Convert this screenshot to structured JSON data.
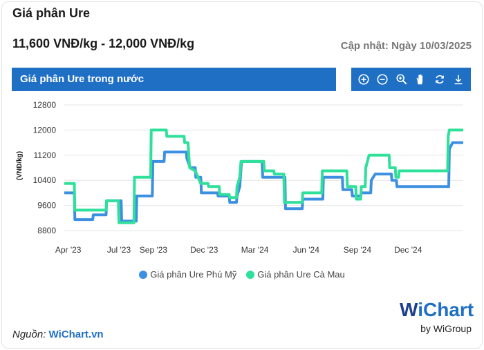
{
  "header": {
    "title": "Giá phân Ure",
    "price_range": "11,600 VNĐ/kg - 12,000 VNĐ/kg",
    "updated": "Cập nhật: Ngày 10/03/2025"
  },
  "chart_panel": {
    "title": "Giá phân Ure trong nước",
    "tools": [
      "zoom-in-icon",
      "zoom-out-icon",
      "magnify-icon",
      "pan-hand-icon",
      "reset-icon",
      "download-icon"
    ]
  },
  "colors": {
    "accent": "#1f6fc4",
    "phu_my": "#3d8fe0",
    "ca_mau": "#2fe09b"
  },
  "chart_data": {
    "type": "line",
    "title": "",
    "ylabel": "(VNĐ/kg)",
    "xlabel": "",
    "ylim": [
      8800,
      12800
    ],
    "yticks": [
      8800,
      9600,
      10400,
      11200,
      12000,
      12800
    ],
    "x_range": [
      "2023-03-25",
      "2025-03-10"
    ],
    "xticks": [
      {
        "date": "2023-04-01",
        "label": "Apr '23"
      },
      {
        "date": "2023-07-01",
        "label": "Jul '23"
      },
      {
        "date": "2023-09-01",
        "label": "Sep '23"
      },
      {
        "date": "2023-12-01",
        "label": "Dec '23"
      },
      {
        "date": "2024-03-01",
        "label": "Mar '24"
      },
      {
        "date": "2024-06-01",
        "label": "Jun '24"
      },
      {
        "date": "2024-09-01",
        "label": "Sep '24"
      },
      {
        "date": "2024-12-01",
        "label": "Dec '24"
      }
    ],
    "grid": true,
    "legend_position": "bottom",
    "series": [
      {
        "name": "Giá phân Ure Phú Mỹ",
        "points": [
          [
            "2023-03-25",
            10000
          ],
          [
            "2023-04-12",
            10000
          ],
          [
            "2023-04-13",
            9150
          ],
          [
            "2023-05-15",
            9150
          ],
          [
            "2023-05-16",
            9300
          ],
          [
            "2023-06-08",
            9300
          ],
          [
            "2023-06-09",
            9750
          ],
          [
            "2023-07-05",
            9750
          ],
          [
            "2023-07-06",
            9100
          ],
          [
            "2023-08-01",
            9100
          ],
          [
            "2023-08-02",
            9900
          ],
          [
            "2023-08-30",
            9900
          ],
          [
            "2023-08-31",
            11000
          ],
          [
            "2023-09-20",
            11000
          ],
          [
            "2023-09-21",
            11300
          ],
          [
            "2023-10-30",
            11300
          ],
          [
            "2023-10-31",
            11100
          ],
          [
            "2023-11-06",
            10800
          ],
          [
            "2023-11-15",
            10800
          ],
          [
            "2023-11-16",
            10500
          ],
          [
            "2023-11-25",
            10500
          ],
          [
            "2023-11-26",
            10000
          ],
          [
            "2023-12-25",
            10000
          ],
          [
            "2023-12-26",
            9900
          ],
          [
            "2024-01-15",
            9900
          ],
          [
            "2024-01-16",
            9700
          ],
          [
            "2024-01-28",
            9700
          ],
          [
            "2024-01-29",
            9900
          ],
          [
            "2024-02-03",
            10200
          ],
          [
            "2024-02-06",
            11000
          ],
          [
            "2024-03-14",
            11000
          ],
          [
            "2024-03-15",
            10500
          ],
          [
            "2024-04-24",
            10500
          ],
          [
            "2024-04-25",
            9500
          ],
          [
            "2024-05-25",
            9500
          ],
          [
            "2024-05-26",
            9800
          ],
          [
            "2024-07-01",
            9800
          ],
          [
            "2024-07-02",
            10500
          ],
          [
            "2024-08-05",
            10500
          ],
          [
            "2024-08-06",
            10100
          ],
          [
            "2024-08-22",
            10100
          ],
          [
            "2024-08-23",
            9900
          ],
          [
            "2024-09-07",
            9900
          ],
          [
            "2024-09-08",
            10000
          ],
          [
            "2024-09-25",
            10000
          ],
          [
            "2024-09-26",
            10400
          ],
          [
            "2024-10-03",
            10600
          ],
          [
            "2024-11-01",
            10600
          ],
          [
            "2024-11-02",
            10400
          ],
          [
            "2024-11-10",
            10400
          ],
          [
            "2024-11-11",
            10200
          ],
          [
            "2025-02-12",
            10200
          ],
          [
            "2025-02-13",
            11400
          ],
          [
            "2025-02-19",
            11600
          ],
          [
            "2025-03-10",
            11600
          ]
        ]
      },
      {
        "name": "Giá phân Ure Cà Mau",
        "points": [
          [
            "2023-03-25",
            10300
          ],
          [
            "2023-04-12",
            10300
          ],
          [
            "2023-04-13",
            9450
          ],
          [
            "2023-06-08",
            9450
          ],
          [
            "2023-06-09",
            9750
          ],
          [
            "2023-06-30",
            9750
          ],
          [
            "2023-07-01",
            9050
          ],
          [
            "2023-07-28",
            9050
          ],
          [
            "2023-07-29",
            10500
          ],
          [
            "2023-08-27",
            10500
          ],
          [
            "2023-08-28",
            12000
          ],
          [
            "2023-09-24",
            12000
          ],
          [
            "2023-09-25",
            11800
          ],
          [
            "2023-10-26",
            11800
          ],
          [
            "2023-10-27",
            11600
          ],
          [
            "2023-11-02",
            11600
          ],
          [
            "2023-11-05",
            10800
          ],
          [
            "2023-11-15",
            10700
          ],
          [
            "2023-11-25",
            10300
          ],
          [
            "2023-12-08",
            10300
          ],
          [
            "2023-12-09",
            10200
          ],
          [
            "2023-12-28",
            10200
          ],
          [
            "2023-12-29",
            9950
          ],
          [
            "2024-01-15",
            9950
          ],
          [
            "2024-01-16",
            9850
          ],
          [
            "2024-01-28",
            9850
          ],
          [
            "2024-01-29",
            10200
          ],
          [
            "2024-02-03",
            10500
          ],
          [
            "2024-02-05",
            11000
          ],
          [
            "2024-03-17",
            11000
          ],
          [
            "2024-03-18",
            10700
          ],
          [
            "2024-04-04",
            10700
          ],
          [
            "2024-04-05",
            10600
          ],
          [
            "2024-04-22",
            10600
          ],
          [
            "2024-04-23",
            9700
          ],
          [
            "2024-05-25",
            9700
          ],
          [
            "2024-05-26",
            10000
          ],
          [
            "2024-06-29",
            10000
          ],
          [
            "2024-06-30",
            10700
          ],
          [
            "2024-08-13",
            10700
          ],
          [
            "2024-08-14",
            10200
          ],
          [
            "2024-08-29",
            10200
          ],
          [
            "2024-08-30",
            9800
          ],
          [
            "2024-09-07",
            9800
          ],
          [
            "2024-09-08",
            10200
          ],
          [
            "2024-09-15",
            10200
          ],
          [
            "2024-09-16",
            10800
          ],
          [
            "2024-09-22",
            11200
          ],
          [
            "2024-10-28",
            11200
          ],
          [
            "2024-10-29",
            10800
          ],
          [
            "2024-11-08",
            10800
          ],
          [
            "2024-11-09",
            10500
          ],
          [
            "2024-11-14",
            10500
          ],
          [
            "2024-11-15",
            10700
          ],
          [
            "2025-02-10",
            10700
          ],
          [
            "2025-02-11",
            11800
          ],
          [
            "2025-02-13",
            12000
          ],
          [
            "2025-03-10",
            12000
          ]
        ]
      }
    ]
  },
  "legend": [
    "Giá phân Ure Phú Mỹ",
    "Giá phân Ure Cà Mau"
  ],
  "footer": {
    "source_label": "Nguồn:",
    "source_link": "WiChart.vn",
    "brand_w": "W",
    "brand_rest": "iChart",
    "brand_sub": "by WiGroup"
  }
}
